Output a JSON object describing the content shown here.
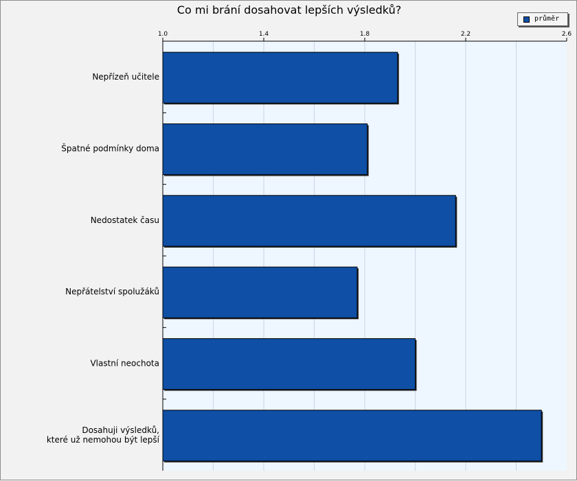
{
  "chart_data": {
    "type": "bar",
    "orientation": "horizontal",
    "title": "Co mi brání dosahovat lepších výsledků?",
    "xlim": [
      1.0,
      2.6
    ],
    "ticks": [
      "1.0",
      "1.4",
      "1.8",
      "2.2",
      "2.6"
    ],
    "tick_values": [
      1.0,
      1.4,
      1.8,
      2.2,
      2.6
    ],
    "grid": true,
    "legend_placement": "top-right",
    "categories": [
      [
        "Nepřízeň učitele"
      ],
      [
        "Špatné podmínky doma"
      ],
      [
        "Nedostatek času"
      ],
      [
        "Nepřátelství spolužáků"
      ],
      [
        "Vlastní neochota"
      ],
      [
        "Dosahuji výsledků,",
        "které už nemohou být lepší"
      ]
    ],
    "series": [
      {
        "name": "průměr",
        "values": [
          1.93,
          1.81,
          2.16,
          1.77,
          2.0,
          2.5
        ],
        "color": "#0f4fa5"
      }
    ],
    "colors": {
      "plot_background": "#eef6ff",
      "bar_fill": "#0f4fa5",
      "grid": "#c8d7e6"
    }
  }
}
